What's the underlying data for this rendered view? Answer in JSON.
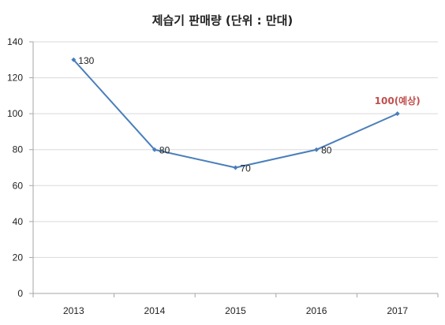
{
  "chart_data": {
    "type": "line",
    "title": "제습기 판매량 (단위 : 만대)",
    "xlabel": "",
    "ylabel": "",
    "categories": [
      "2013",
      "2014",
      "2015",
      "2016",
      "2017"
    ],
    "series": [
      {
        "values": [
          130,
          80,
          70,
          80,
          100
        ],
        "data_labels": [
          "130",
          "80",
          "70",
          "80",
          "100(예상)"
        ],
        "color": "#4a7ebb"
      }
    ],
    "highlight_label_index": 4,
    "highlight_color": "#c0504d",
    "ylim": [
      0,
      140
    ],
    "yticks": [
      0,
      20,
      40,
      60,
      80,
      100,
      120,
      140
    ],
    "grid": true,
    "grid_color": "#d9d9d9",
    "axis_color": "#a6a6a6",
    "legend": "none"
  }
}
